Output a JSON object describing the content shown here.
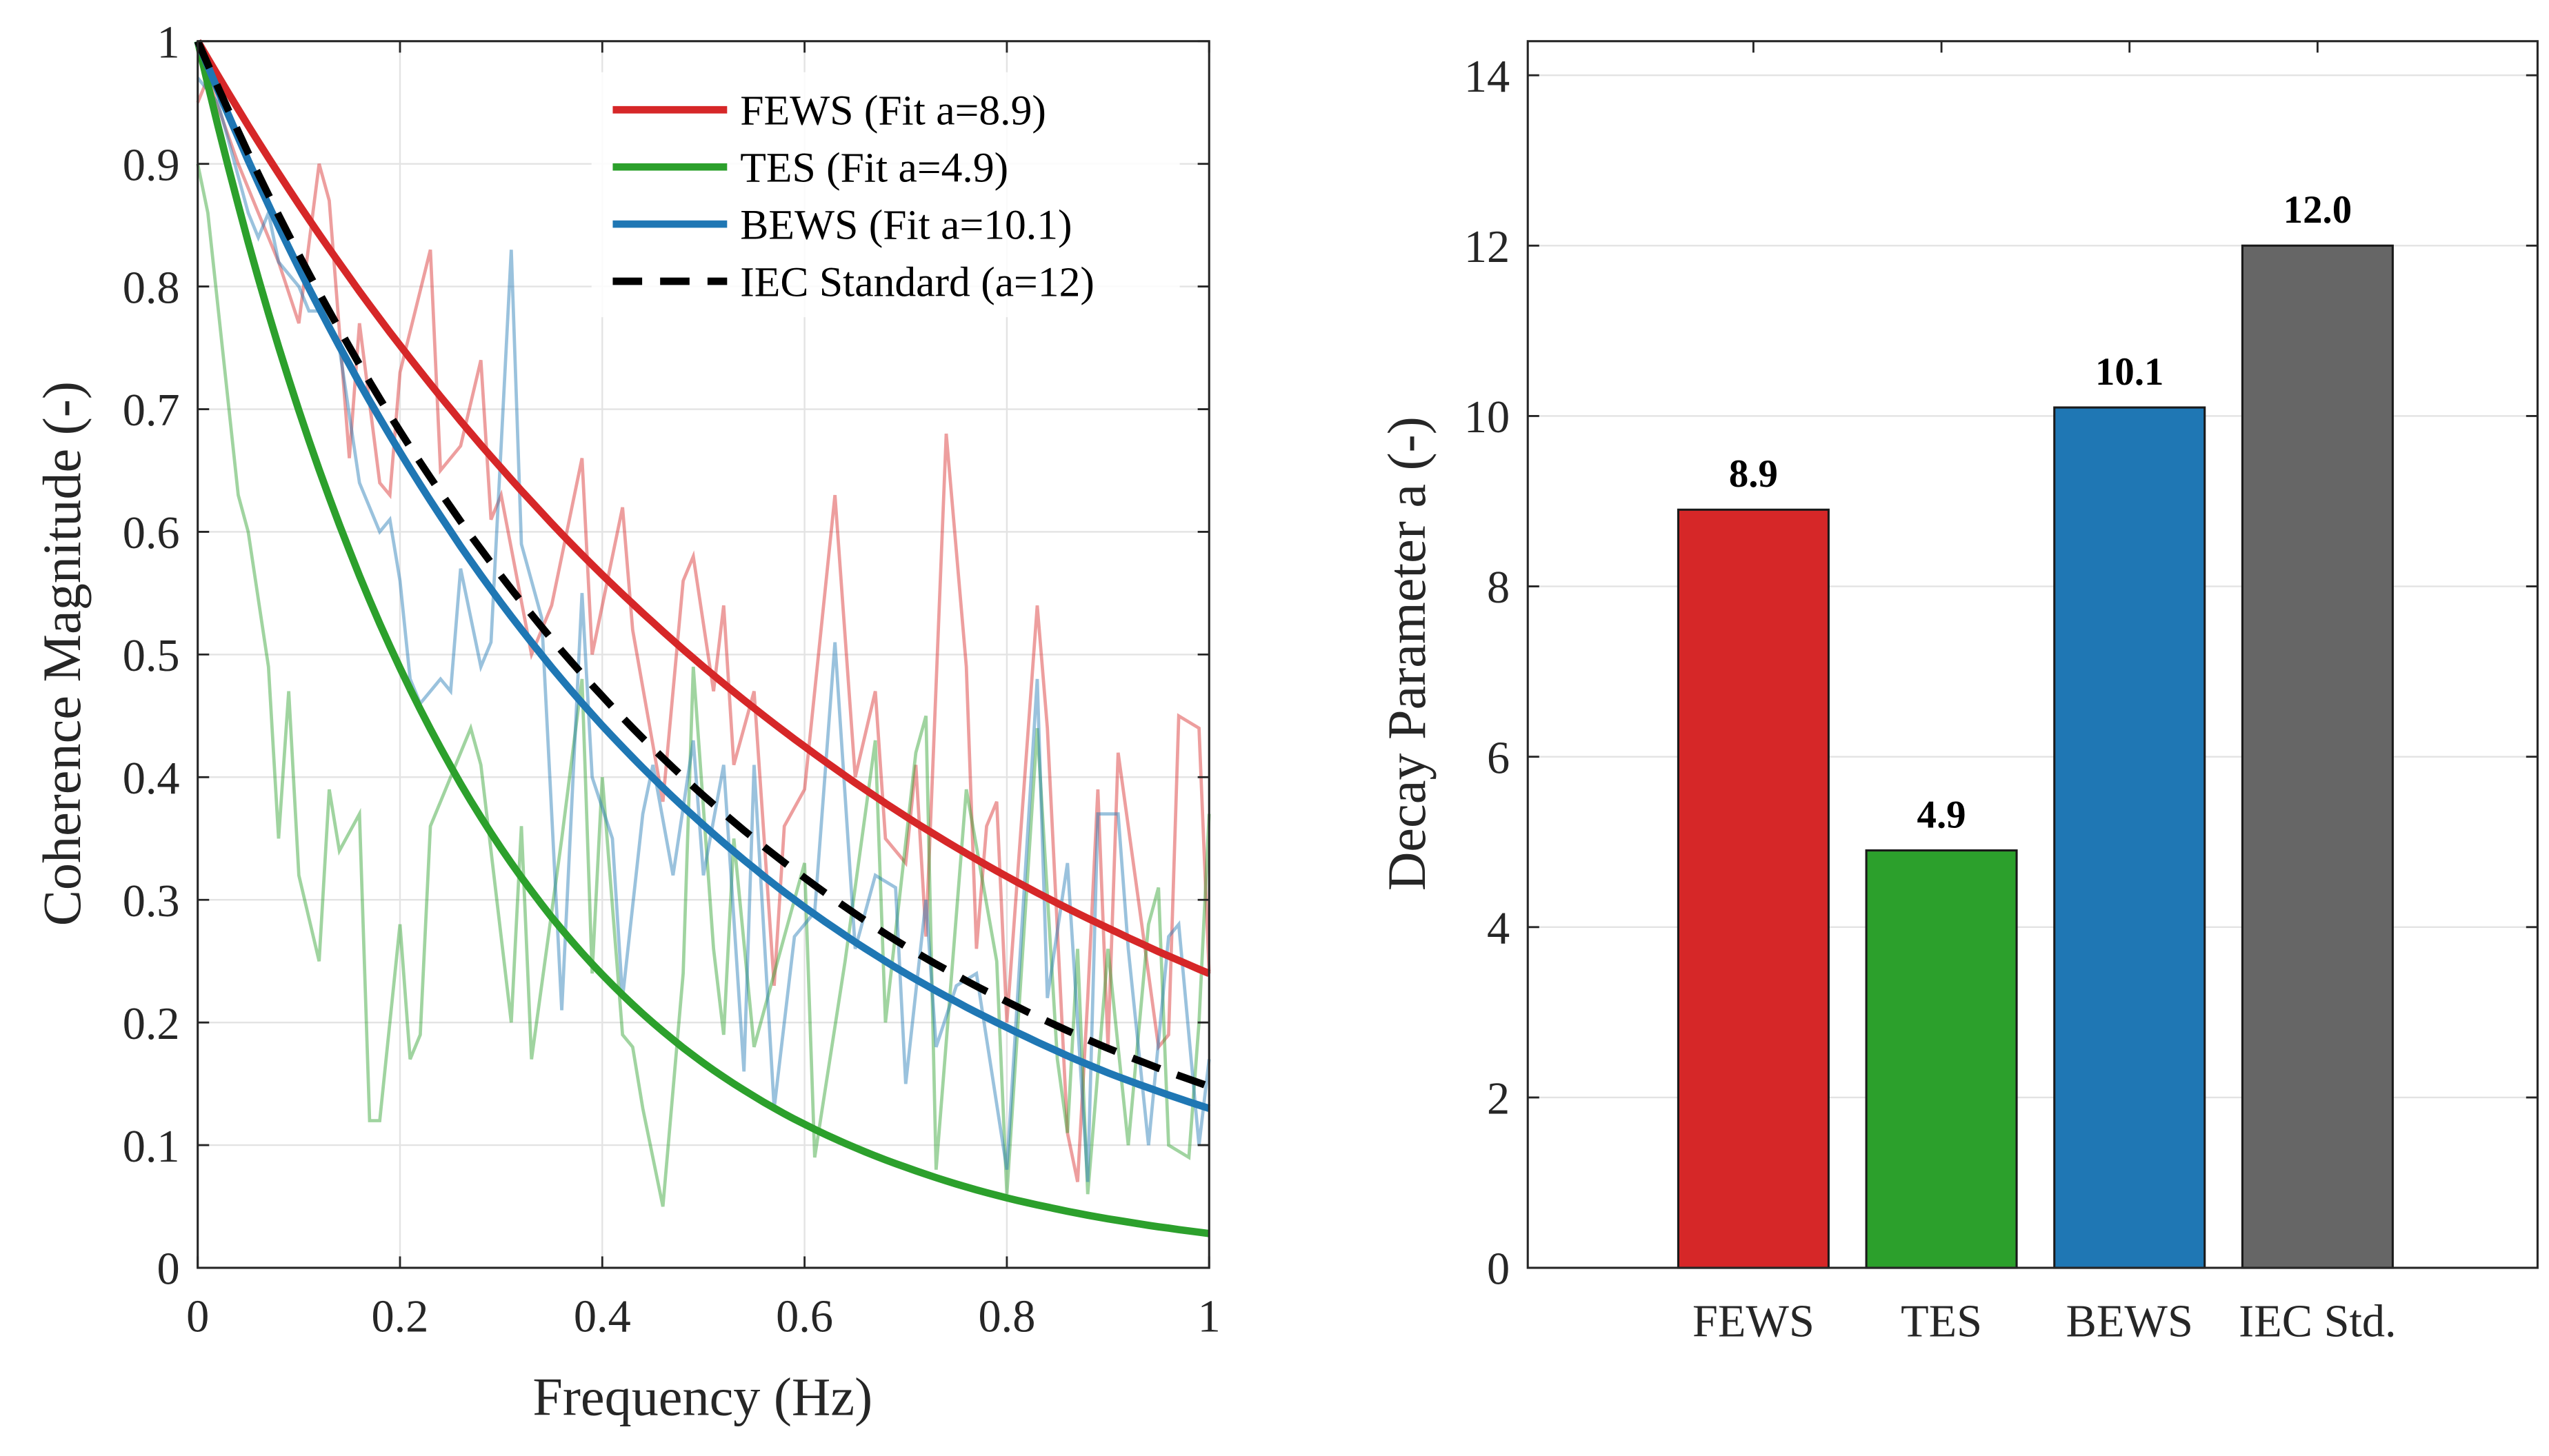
{
  "chart_data": [
    {
      "type": "line",
      "xlabel": "Frequency (Hz)",
      "ylabel": "Coherence Magnitude (-)",
      "xlim": [
        0,
        1
      ],
      "ylim": [
        0,
        1
      ],
      "xticks": [
        "0",
        "0.2",
        "0.4",
        "0.6",
        "0.8",
        "1"
      ],
      "yticks": [
        "0",
        "0.1",
        "0.2",
        "0.3",
        "0.4",
        "0.5",
        "0.6",
        "0.7",
        "0.8",
        "0.9",
        "1"
      ],
      "grid": true,
      "legend_position": "top-right",
      "colors": {
        "FEWS": "#d62728",
        "TES": "#2ca02c",
        "BEWS": "#1f77b4",
        "IEC": "#000000"
      },
      "measured_series": [
        {
          "name": "FEWS",
          "color": "#d62728",
          "x": [
            0,
            0.01,
            0.04,
            0.06,
            0.08,
            0.1,
            0.12,
            0.13,
            0.15,
            0.16,
            0.18,
            0.19,
            0.2,
            0.23,
            0.24,
            0.26,
            0.28,
            0.29,
            0.3,
            0.33,
            0.35,
            0.38,
            0.39,
            0.42,
            0.43,
            0.46,
            0.48,
            0.49,
            0.51,
            0.52,
            0.53,
            0.55,
            0.57,
            0.58,
            0.6,
            0.63,
            0.65,
            0.67,
            0.68,
            0.7,
            0.71,
            0.72,
            0.74,
            0.76,
            0.77,
            0.78,
            0.79,
            0.8,
            0.83,
            0.84,
            0.86,
            0.87,
            0.88,
            0.89,
            0.9,
            0.91,
            0.93,
            0.95,
            0.96,
            0.97,
            0.99,
            1.0
          ],
          "y": [
            0.95,
            0.97,
            0.9,
            0.86,
            0.82,
            0.77,
            0.9,
            0.87,
            0.66,
            0.77,
            0.64,
            0.63,
            0.73,
            0.83,
            0.65,
            0.67,
            0.74,
            0.61,
            0.63,
            0.5,
            0.54,
            0.66,
            0.5,
            0.62,
            0.52,
            0.38,
            0.56,
            0.58,
            0.47,
            0.54,
            0.41,
            0.47,
            0.23,
            0.36,
            0.39,
            0.63,
            0.4,
            0.47,
            0.35,
            0.33,
            0.41,
            0.27,
            0.68,
            0.49,
            0.26,
            0.36,
            0.38,
            0.2,
            0.54,
            0.44,
            0.11,
            0.07,
            0.22,
            0.39,
            0.18,
            0.42,
            0.3,
            0.18,
            0.19,
            0.45,
            0.44,
            0.24
          ]
        },
        {
          "name": "TES",
          "color": "#2ca02c",
          "x": [
            0,
            0.01,
            0.04,
            0.05,
            0.07,
            0.08,
            0.09,
            0.1,
            0.12,
            0.13,
            0.14,
            0.16,
            0.17,
            0.18,
            0.2,
            0.21,
            0.22,
            0.23,
            0.24,
            0.27,
            0.28,
            0.31,
            0.32,
            0.33,
            0.36,
            0.38,
            0.39,
            0.4,
            0.42,
            0.43,
            0.44,
            0.46,
            0.48,
            0.49,
            0.51,
            0.52,
            0.53,
            0.55,
            0.58,
            0.6,
            0.61,
            0.64,
            0.67,
            0.68,
            0.71,
            0.72,
            0.73,
            0.76,
            0.79,
            0.8,
            0.83,
            0.85,
            0.86,
            0.87,
            0.88,
            0.9,
            0.92,
            0.94,
            0.95,
            0.96,
            0.98,
            0.99,
            1.0
          ],
          "y": [
            0.9,
            0.86,
            0.63,
            0.6,
            0.49,
            0.35,
            0.47,
            0.32,
            0.25,
            0.39,
            0.34,
            0.37,
            0.12,
            0.12,
            0.28,
            0.17,
            0.19,
            0.36,
            0.38,
            0.44,
            0.41,
            0.2,
            0.36,
            0.17,
            0.35,
            0.48,
            0.24,
            0.4,
            0.19,
            0.18,
            0.13,
            0.05,
            0.24,
            0.49,
            0.26,
            0.19,
            0.35,
            0.18,
            0.27,
            0.33,
            0.09,
            0.25,
            0.43,
            0.2,
            0.42,
            0.45,
            0.08,
            0.39,
            0.25,
            0.06,
            0.44,
            0.17,
            0.11,
            0.26,
            0.06,
            0.26,
            0.1,
            0.28,
            0.31,
            0.1,
            0.09,
            0.2,
            0.37
          ]
        },
        {
          "name": "BEWS",
          "color": "#1f77b4",
          "x": [
            0,
            0.02,
            0.03,
            0.05,
            0.06,
            0.07,
            0.08,
            0.1,
            0.11,
            0.12,
            0.14,
            0.16,
            0.18,
            0.19,
            0.2,
            0.21,
            0.22,
            0.24,
            0.25,
            0.26,
            0.28,
            0.29,
            0.31,
            0.32,
            0.34,
            0.36,
            0.38,
            0.39,
            0.41,
            0.42,
            0.44,
            0.45,
            0.47,
            0.49,
            0.5,
            0.52,
            0.54,
            0.55,
            0.57,
            0.59,
            0.61,
            0.63,
            0.65,
            0.67,
            0.69,
            0.7,
            0.72,
            0.73,
            0.75,
            0.77,
            0.8,
            0.83,
            0.84,
            0.86,
            0.88,
            0.89,
            0.91,
            0.92,
            0.94,
            0.96,
            0.97,
            0.99,
            1.0
          ],
          "y": [
            0.97,
            0.95,
            0.92,
            0.86,
            0.84,
            0.86,
            0.82,
            0.8,
            0.78,
            0.78,
            0.75,
            0.64,
            0.6,
            0.61,
            0.56,
            0.48,
            0.46,
            0.48,
            0.47,
            0.57,
            0.49,
            0.51,
            0.83,
            0.59,
            0.53,
            0.21,
            0.55,
            0.4,
            0.35,
            0.22,
            0.37,
            0.41,
            0.32,
            0.43,
            0.32,
            0.41,
            0.16,
            0.41,
            0.13,
            0.27,
            0.29,
            0.51,
            0.26,
            0.32,
            0.31,
            0.15,
            0.3,
            0.18,
            0.23,
            0.24,
            0.08,
            0.48,
            0.22,
            0.33,
            0.07,
            0.37,
            0.37,
            0.26,
            0.1,
            0.27,
            0.28,
            0.1,
            0.17
          ]
        }
      ],
      "fit_series": [
        {
          "name": "FEWS (Fit a=8.9)",
          "color": "#d62728",
          "dash": false,
          "x": [
            0,
            0.1,
            0.2,
            0.3,
            0.4,
            0.5,
            0.6,
            0.7,
            0.8,
            0.9,
            1.0
          ],
          "y": [
            1,
            0.867,
            0.752,
            0.652,
            0.565,
            0.49,
            0.425,
            0.368,
            0.319,
            0.277,
            0.24
          ]
        },
        {
          "name": "TES (Fit a=4.9)",
          "color": "#2ca02c",
          "dash": false,
          "x": [
            0,
            0.1,
            0.2,
            0.3,
            0.4,
            0.5,
            0.6,
            0.7,
            0.8,
            0.9,
            1.0
          ],
          "y": [
            1,
            0.699,
            0.489,
            0.342,
            0.239,
            0.167,
            0.117,
            0.082,
            0.057,
            0.04,
            0.028
          ]
        },
        {
          "name": "BEWS (Fit a=10.1)",
          "color": "#1f77b4",
          "dash": false,
          "x": [
            0,
            0.1,
            0.2,
            0.3,
            0.4,
            0.5,
            0.6,
            0.7,
            0.8,
            0.9,
            1.0
          ],
          "y": [
            1,
            0.815,
            0.665,
            0.542,
            0.442,
            0.361,
            0.294,
            0.24,
            0.196,
            0.159,
            0.13
          ]
        },
        {
          "name": "IEC Standard (a=12)",
          "color": "#000000",
          "dash": true,
          "x": [
            0,
            0.1,
            0.2,
            0.3,
            0.4,
            0.5,
            0.6,
            0.7,
            0.8,
            0.9,
            1.0
          ],
          "y": [
            1,
            0.826,
            0.682,
            0.564,
            0.466,
            0.385,
            0.318,
            0.262,
            0.217,
            0.179,
            0.148
          ]
        }
      ]
    },
    {
      "type": "bar",
      "xlabel": "",
      "ylabel": "Decay Parameter a (-)",
      "categories": [
        "FEWS",
        "TES",
        "BEWS",
        "IEC Std."
      ],
      "values": [
        8.9,
        4.9,
        10.1,
        12.0
      ],
      "value_labels": [
        "8.9",
        "4.9",
        "10.1",
        "12.0"
      ],
      "colors": [
        "#d62728",
        "#2ca02c",
        "#1f77b4",
        "#666666"
      ],
      "ylim": [
        0,
        14.4
      ],
      "xlim": [
        -0.2,
        5.17
      ],
      "yticks": [
        "0",
        "2",
        "4",
        "6",
        "8",
        "10",
        "12",
        "14"
      ],
      "grid": true
    }
  ]
}
